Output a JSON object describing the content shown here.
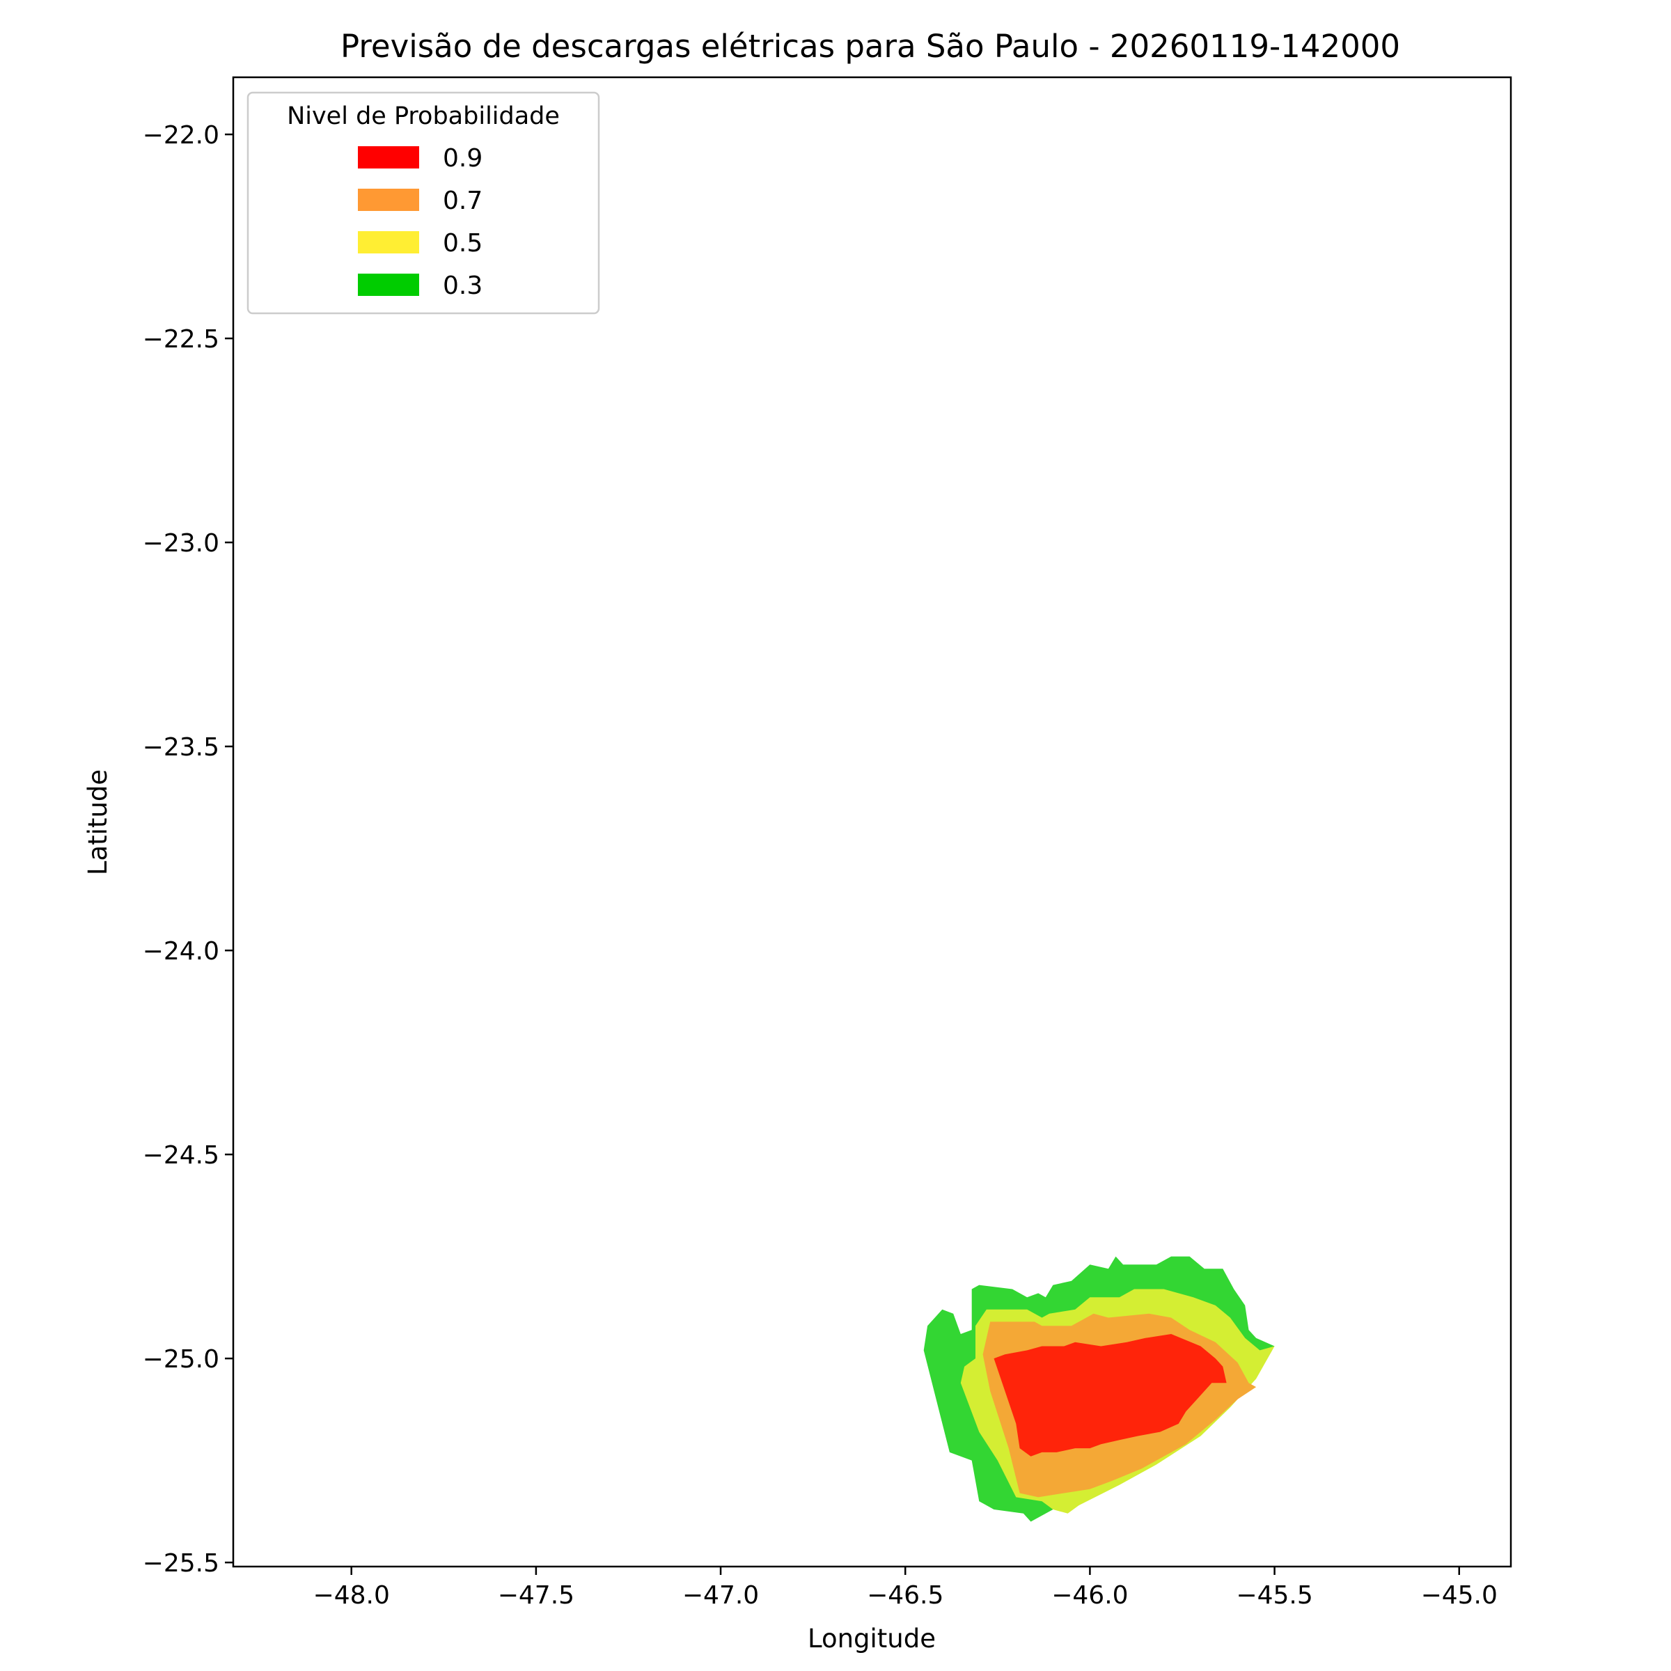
{
  "chart_data": {
    "type": "contour",
    "title": "Previsão de descargas elétricas para São Paulo - 20260119-142000",
    "xlabel": "Longitude",
    "ylabel": "Latitude",
    "xlim": [
      -48.32,
      -44.86
    ],
    "ylim": [
      -25.51,
      -21.86
    ],
    "x_ticks": [
      -48.0,
      -47.5,
      -47.0,
      -46.5,
      -46.0,
      -45.5,
      -45.0
    ],
    "x_tick_labels": [
      "−48.0",
      "−47.5",
      "−47.0",
      "−46.5",
      "−46.0",
      "−45.5",
      "−45.0"
    ],
    "y_ticks": [
      -22.0,
      -22.5,
      -23.0,
      -23.5,
      -24.0,
      -24.5,
      -25.0,
      -25.5
    ],
    "y_tick_labels": [
      "−22.0",
      "−22.5",
      "−23.0",
      "−23.5",
      "−24.0",
      "−24.5",
      "−25.0",
      "−25.5"
    ],
    "legend": {
      "title": "Nivel de Probabilidade",
      "position": "upper-left",
      "entries": [
        {
          "label": "0.9",
          "color": "#ff0000"
        },
        {
          "label": "0.7",
          "color": "#ff9933"
        },
        {
          "label": "0.5",
          "color": "#ffee33"
        },
        {
          "label": "0.3",
          "color": "#00cc00"
        }
      ]
    },
    "regions": [
      {
        "level": 0.3,
        "color": "#33d633",
        "polygon": [
          [
            -46.44,
            -24.92
          ],
          [
            -46.4,
            -24.88
          ],
          [
            -46.37,
            -24.89
          ],
          [
            -46.35,
            -24.94
          ],
          [
            -46.32,
            -24.93
          ],
          [
            -46.32,
            -24.83
          ],
          [
            -46.3,
            -24.82
          ],
          [
            -46.21,
            -24.83
          ],
          [
            -46.17,
            -24.85
          ],
          [
            -46.14,
            -24.84
          ],
          [
            -46.12,
            -24.85
          ],
          [
            -46.1,
            -24.82
          ],
          [
            -46.05,
            -24.81
          ],
          [
            -46.0,
            -24.77
          ],
          [
            -45.95,
            -24.78
          ],
          [
            -45.93,
            -24.75
          ],
          [
            -45.91,
            -24.77
          ],
          [
            -45.82,
            -24.77
          ],
          [
            -45.78,
            -24.75
          ],
          [
            -45.73,
            -24.75
          ],
          [
            -45.69,
            -24.78
          ],
          [
            -45.64,
            -24.78
          ],
          [
            -45.61,
            -24.83
          ],
          [
            -45.58,
            -24.87
          ],
          [
            -45.57,
            -24.93
          ],
          [
            -45.55,
            -24.95
          ],
          [
            -45.5,
            -24.97
          ],
          [
            -45.6,
            -25.07
          ],
          [
            -45.71,
            -25.18
          ],
          [
            -45.82,
            -25.25
          ],
          [
            -45.94,
            -25.3
          ],
          [
            -46.04,
            -25.35
          ],
          [
            -46.1,
            -25.37
          ],
          [
            -46.16,
            -25.4
          ],
          [
            -46.18,
            -25.38
          ],
          [
            -46.26,
            -25.37
          ],
          [
            -46.3,
            -25.35
          ],
          [
            -46.32,
            -25.25
          ],
          [
            -46.38,
            -25.23
          ],
          [
            -46.45,
            -24.98
          ]
        ]
      },
      {
        "level": 0.5,
        "color": "#d4ee33",
        "polygon": [
          [
            -46.34,
            -25.02
          ],
          [
            -46.31,
            -25.0
          ],
          [
            -46.31,
            -24.92
          ],
          [
            -46.28,
            -24.88
          ],
          [
            -46.17,
            -24.88
          ],
          [
            -46.13,
            -24.9
          ],
          [
            -46.11,
            -24.89
          ],
          [
            -46.04,
            -24.88
          ],
          [
            -46.0,
            -24.85
          ],
          [
            -45.92,
            -24.85
          ],
          [
            -45.88,
            -24.83
          ],
          [
            -45.8,
            -24.83
          ],
          [
            -45.72,
            -24.85
          ],
          [
            -45.66,
            -24.87
          ],
          [
            -45.62,
            -24.9
          ],
          [
            -45.58,
            -24.95
          ],
          [
            -45.54,
            -24.98
          ],
          [
            -45.5,
            -24.97
          ],
          [
            -45.55,
            -25.05
          ],
          [
            -45.62,
            -25.12
          ],
          [
            -45.7,
            -25.19
          ],
          [
            -45.82,
            -25.26
          ],
          [
            -45.92,
            -25.31
          ],
          [
            -46.03,
            -25.36
          ],
          [
            -46.06,
            -25.38
          ],
          [
            -46.1,
            -25.37
          ],
          [
            -46.13,
            -25.35
          ],
          [
            -46.2,
            -25.34
          ],
          [
            -46.25,
            -25.25
          ],
          [
            -46.3,
            -25.18
          ],
          [
            -46.35,
            -25.06
          ]
        ]
      },
      {
        "level": 0.7,
        "color": "#f4a836",
        "polygon": [
          [
            -46.29,
            -24.99
          ],
          [
            -46.27,
            -24.91
          ],
          [
            -46.15,
            -24.91
          ],
          [
            -46.13,
            -24.92
          ],
          [
            -46.05,
            -24.92
          ],
          [
            -45.99,
            -24.89
          ],
          [
            -45.95,
            -24.9
          ],
          [
            -45.84,
            -24.89
          ],
          [
            -45.78,
            -24.9
          ],
          [
            -45.73,
            -24.93
          ],
          [
            -45.66,
            -24.96
          ],
          [
            -45.6,
            -25.01
          ],
          [
            -45.57,
            -25.06
          ],
          [
            -45.55,
            -25.07
          ],
          [
            -45.6,
            -25.1
          ],
          [
            -45.66,
            -25.15
          ],
          [
            -45.74,
            -25.21
          ],
          [
            -45.86,
            -25.27
          ],
          [
            -45.94,
            -25.3
          ],
          [
            -46.0,
            -25.32
          ],
          [
            -46.07,
            -25.33
          ],
          [
            -46.14,
            -25.34
          ],
          [
            -46.19,
            -25.33
          ],
          [
            -46.22,
            -25.22
          ],
          [
            -46.27,
            -25.08
          ]
        ]
      },
      {
        "level": 0.9,
        "color": "#ff240a",
        "polygon": [
          [
            -46.26,
            -25.0
          ],
          [
            -46.23,
            -24.99
          ],
          [
            -46.17,
            -24.98
          ],
          [
            -46.13,
            -24.97
          ],
          [
            -46.07,
            -24.97
          ],
          [
            -46.04,
            -24.96
          ],
          [
            -45.97,
            -24.97
          ],
          [
            -45.9,
            -24.96
          ],
          [
            -45.85,
            -24.95
          ],
          [
            -45.78,
            -24.94
          ],
          [
            -45.7,
            -24.97
          ],
          [
            -45.66,
            -25.0
          ],
          [
            -45.64,
            -25.02
          ],
          [
            -45.63,
            -25.06
          ],
          [
            -45.67,
            -25.06
          ],
          [
            -45.71,
            -25.1
          ],
          [
            -45.74,
            -25.13
          ],
          [
            -45.76,
            -25.16
          ],
          [
            -45.81,
            -25.18
          ],
          [
            -45.87,
            -25.19
          ],
          [
            -45.92,
            -25.2
          ],
          [
            -45.97,
            -25.21
          ],
          [
            -46.0,
            -25.22
          ],
          [
            -46.04,
            -25.22
          ],
          [
            -46.09,
            -25.23
          ],
          [
            -46.13,
            -25.23
          ],
          [
            -46.16,
            -25.24
          ],
          [
            -46.19,
            -25.22
          ],
          [
            -46.2,
            -25.16
          ],
          [
            -46.23,
            -25.08
          ]
        ]
      }
    ]
  }
}
